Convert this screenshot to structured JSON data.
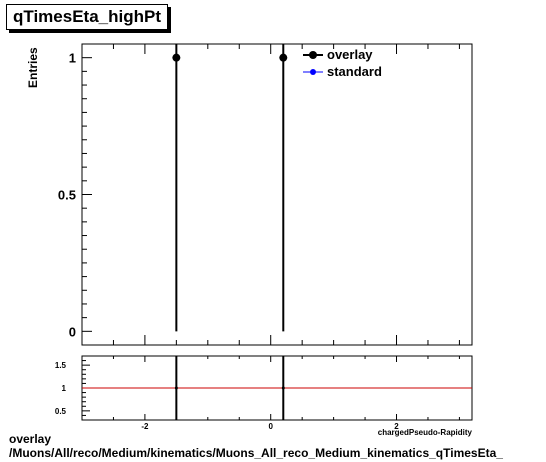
{
  "title": "qTimesEta_highPt",
  "footer": {
    "line1": "overlay",
    "line2": "/Muons/All/reco/Medium/kinematics/Muons_All_reco_Medium_kinematics_qTimesEta_"
  },
  "colors": {
    "overlay": "#000000",
    "standard": "#0000ff",
    "ratio_line": "#cc0000"
  },
  "chart_data": [
    {
      "type": "scatter",
      "title": "qTimesEta_highPt",
      "ylabel": "Entries",
      "xlim": [
        -3,
        3.2
      ],
      "ylim": [
        -0.05,
        1.05
      ],
      "xticks_labeled": [
        -2,
        0,
        2
      ],
      "xtick_labels": [
        "-2",
        "0",
        "2"
      ],
      "yticks_labeled": [
        0,
        0.5,
        1
      ],
      "ytick_labels": [
        "0",
        "0.5",
        "1"
      ],
      "legend": {
        "placement": "top-right",
        "entries": [
          "overlay",
          "standard"
        ]
      },
      "series": [
        {
          "name": "overlay",
          "x": [
            -1.5,
            0.2
          ],
          "y": [
            1,
            1
          ],
          "yerr": [
            1,
            1
          ]
        },
        {
          "name": "standard",
          "x": [
            -1.5,
            0.2
          ],
          "y": [
            1,
            1
          ],
          "yerr": [
            1,
            1
          ]
        }
      ],
      "grid": false
    },
    {
      "type": "line",
      "xlim": [
        -3,
        3.2
      ],
      "ylim": [
        0.3,
        1.7
      ],
      "xlabel": "chargedPseudo-Rapidity",
      "xticks_labeled": [
        -2,
        0,
        2
      ],
      "xtick_labels": [
        "-2",
        "0",
        "2"
      ],
      "yticks_labeled": [
        0.5,
        1,
        1.5
      ],
      "ytick_labels": [
        "0.5",
        "1",
        "1.5"
      ],
      "reference_line": 1,
      "ratio_points": {
        "x": [
          -1.5,
          0.2
        ],
        "y": [
          1,
          1
        ]
      },
      "grid": false
    }
  ]
}
